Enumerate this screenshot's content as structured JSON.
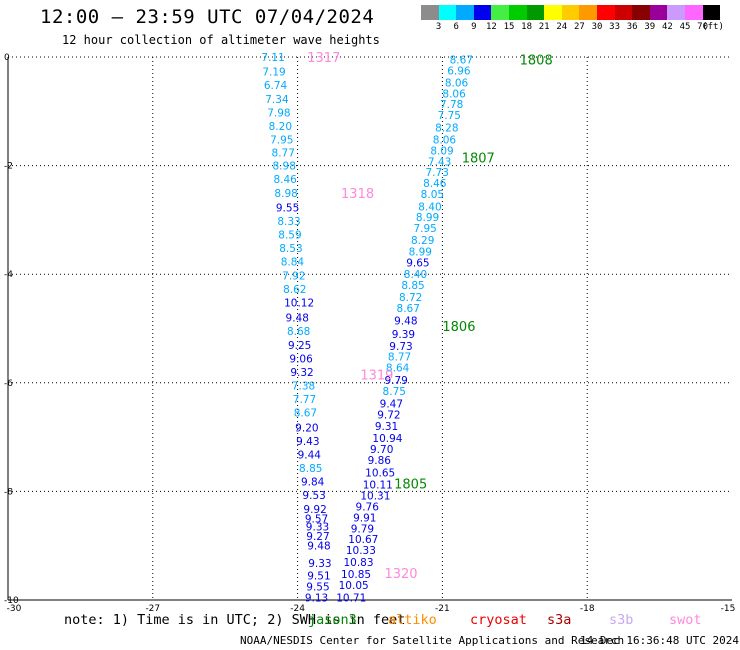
{
  "header": {
    "title": "12:00 — 23:59 UTC 07/04/2024",
    "subtitle": "12 hour collection of altimeter wave heights"
  },
  "footer": {
    "note": "note: 1) Time is in UTC; 2) SWH is in feet",
    "credit": "NOAA/NESDIS Center for Satellite Applications and Research",
    "generated": "14 Dec 16:36:48 UTC 2024"
  },
  "missions": [
    {
      "label": "jason3",
      "color": "#008800",
      "pos": 0
    },
    {
      "label": "altiko",
      "color": "#ff8c00",
      "pos": 1
    },
    {
      "label": "cryosat",
      "color": "#ee0000",
      "pos": 2
    },
    {
      "label": "s3a",
      "color": "#aa0000",
      "pos": 3
    },
    {
      "label": "s3b",
      "color": "#c8a8f0",
      "pos": 4
    },
    {
      "label": "swot",
      "color": "#ff88dd",
      "pos": 5
    }
  ],
  "legend": {
    "colors": [
      "#8c8c8c",
      "#00ffff",
      "#00aaff",
      "#0000ee",
      "#44ee44",
      "#00cc00",
      "#009900",
      "#ffff00",
      "#ffcc00",
      "#ff9900",
      "#ff0000",
      "#cc0000",
      "#880000",
      "#990099",
      "#cc99ff",
      "#ff66ff",
      "#000000"
    ],
    "labels": [
      "3",
      "6",
      "9",
      "12",
      "15",
      "18",
      "21",
      "24",
      "27",
      "30",
      "33",
      "36",
      "39",
      "42",
      "45",
      "70",
      "(ft)"
    ]
  },
  "chart_data": {
    "type": "scatter",
    "xlim": [
      -30,
      -15
    ],
    "ylim": [
      -10,
      0
    ],
    "x_ticks": [
      "-30",
      "-27",
      "-24",
      "-21",
      "-18",
      "-15"
    ],
    "y_ticks": [
      "0",
      "-2",
      "-4",
      "-6",
      "-8",
      "-10"
    ],
    "grid": true,
    "track_labels": [
      {
        "label": "1317",
        "x": -23.8,
        "y": 0.0,
        "color": "#ff88dd"
      },
      {
        "label": "1318",
        "x": -23.1,
        "y": -2.5,
        "color": "#ff88dd"
      },
      {
        "label": "1319",
        "x": -22.7,
        "y": -5.85,
        "color": "#ff88dd"
      },
      {
        "label": "1320",
        "x": -22.2,
        "y": -9.5,
        "color": "#ff88dd"
      },
      {
        "label": "1808",
        "x": -19.4,
        "y": -0.05,
        "color": "#008800"
      },
      {
        "label": "1807",
        "x": -20.6,
        "y": -1.85,
        "color": "#008800"
      },
      {
        "label": "1806",
        "x": -21.0,
        "y": -4.95,
        "color": "#008800"
      },
      {
        "label": "1805",
        "x": -22.0,
        "y": -7.85,
        "color": "#008800"
      }
    ],
    "series": [
      {
        "color_key": "swot_track",
        "points": [
          [
            -24.75,
            0.0,
            "7.11",
            "#00aaff"
          ],
          [
            -24.73,
            -0.27,
            "7.19",
            "#00aaff"
          ],
          [
            -24.7,
            -0.52,
            "6.74",
            "#00aaff"
          ],
          [
            -24.67,
            -0.77,
            "7.34",
            "#00aaff"
          ],
          [
            -24.63,
            -1.02,
            "7.98",
            "#00aaff"
          ],
          [
            -24.6,
            -1.27,
            "8.20",
            "#00aaff"
          ],
          [
            -24.57,
            -1.52,
            "7.95",
            "#00aaff"
          ],
          [
            -24.54,
            -1.76,
            "8.77",
            "#00aaff"
          ],
          [
            -24.52,
            -2.0,
            "8.98",
            "#00aaff"
          ],
          [
            -24.5,
            -2.25,
            "8.46",
            "#00aaff"
          ],
          [
            -24.48,
            -2.5,
            "8.98",
            "#00aaff"
          ],
          [
            -24.45,
            -2.77,
            "9.55",
            "#0000ee"
          ],
          [
            -24.42,
            -3.02,
            "8.33",
            "#00aaff"
          ],
          [
            -24.4,
            -3.27,
            "8.59",
            "#00aaff"
          ],
          [
            -24.38,
            -3.52,
            "8.53",
            "#00aaff"
          ],
          [
            -24.35,
            -3.77,
            "8.84",
            "#00aaff"
          ],
          [
            -24.32,
            -4.02,
            "7.92",
            "#00aaff"
          ],
          [
            -24.3,
            -4.27,
            "8.62",
            "#00aaff"
          ],
          [
            -24.28,
            -4.52,
            "10.12",
            "#0000ee"
          ],
          [
            -24.25,
            -4.8,
            "9.48",
            "#0000ee"
          ],
          [
            -24.22,
            -5.05,
            "8.68",
            "#00aaff"
          ],
          [
            -24.2,
            -5.3,
            "9.25",
            "#0000ee"
          ],
          [
            -24.17,
            -5.55,
            "9.06",
            "#0000ee"
          ],
          [
            -24.15,
            -5.8,
            "9.32",
            "#0000ee"
          ],
          [
            -24.12,
            -6.05,
            "7.38",
            "#00aaff"
          ],
          [
            -24.1,
            -6.3,
            "7.77",
            "#00aaff"
          ],
          [
            -24.08,
            -6.55,
            "8.67",
            "#00aaff"
          ],
          [
            -24.05,
            -6.82,
            "9.20",
            "#0000ee"
          ],
          [
            -24.03,
            -7.07,
            "9.43",
            "#0000ee"
          ],
          [
            -24.0,
            -7.32,
            "9.44",
            "#0000ee"
          ],
          [
            -23.97,
            -7.57,
            "8.85",
            "#00aaff"
          ],
          [
            -23.93,
            -7.82,
            "9.84",
            "#0000ee"
          ],
          [
            -23.9,
            -8.07,
            "9.53",
            "#0000ee"
          ],
          [
            -23.88,
            -8.32,
            "9.92",
            "#0000ee"
          ],
          [
            -23.85,
            -8.5,
            "9.57",
            "#0000ee"
          ],
          [
            -23.83,
            -8.65,
            "9.33",
            "#0000ee"
          ],
          [
            -23.82,
            -8.82,
            "9.27",
            "#0000ee"
          ],
          [
            -23.8,
            -9.0,
            "9.48",
            "#0000ee"
          ],
          [
            -23.78,
            -9.32,
            "9.33",
            "#0000ee"
          ],
          [
            -23.8,
            -9.55,
            "9.51",
            "#0000ee"
          ],
          [
            -23.82,
            -9.75,
            "9.55",
            "#0000ee"
          ],
          [
            -23.85,
            -9.95,
            "9.13",
            "#0000ee"
          ]
        ]
      },
      {
        "color_key": "jason3_track",
        "points": [
          [
            -20.85,
            -0.05,
            "8.67",
            "#00aaff"
          ],
          [
            -20.9,
            -0.25,
            "6.96",
            "#00aaff"
          ],
          [
            -20.95,
            -0.47,
            "8.06",
            "#00aaff"
          ],
          [
            -21.0,
            -0.67,
            "8.06",
            "#00aaff"
          ],
          [
            -21.05,
            -0.87,
            "7.78",
            "#00aaff"
          ],
          [
            -21.1,
            -1.07,
            "7.75",
            "#00aaff"
          ],
          [
            -21.15,
            -1.3,
            "8.28",
            "#00aaff"
          ],
          [
            -21.2,
            -1.52,
            "8.06",
            "#00aaff"
          ],
          [
            -21.25,
            -1.72,
            "8.09",
            "#00aaff"
          ],
          [
            -21.3,
            -1.92,
            "7.43",
            "#00aaff"
          ],
          [
            -21.35,
            -2.12,
            "7.73",
            "#00aaff"
          ],
          [
            -21.4,
            -2.32,
            "8.46",
            "#00aaff"
          ],
          [
            -21.45,
            -2.52,
            "8.05",
            "#00aaff"
          ],
          [
            -21.5,
            -2.75,
            "8.40",
            "#00aaff"
          ],
          [
            -21.55,
            -2.95,
            "8.99",
            "#00aaff"
          ],
          [
            -21.6,
            -3.15,
            "7.95",
            "#00aaff"
          ],
          [
            -21.65,
            -3.37,
            "8.29",
            "#00aaff"
          ],
          [
            -21.7,
            -3.58,
            "8.99",
            "#00aaff"
          ],
          [
            -21.75,
            -3.78,
            "9.65",
            "#0000ee"
          ],
          [
            -21.8,
            -4.0,
            "8.40",
            "#00aaff"
          ],
          [
            -21.85,
            -4.2,
            "8.85",
            "#00aaff"
          ],
          [
            -21.9,
            -4.42,
            "8.72",
            "#00aaff"
          ],
          [
            -21.95,
            -4.62,
            "8.67",
            "#00aaff"
          ],
          [
            -22.0,
            -4.85,
            "9.48",
            "#0000ee"
          ],
          [
            -22.05,
            -5.1,
            "9.39",
            "#0000ee"
          ],
          [
            -22.1,
            -5.32,
            "9.73",
            "#0000ee"
          ],
          [
            -22.13,
            -5.52,
            "8.77",
            "#00aaff"
          ],
          [
            -22.17,
            -5.72,
            "8.64",
            "#00aaff"
          ],
          [
            -22.2,
            -5.95,
            "9.79",
            "#0000ee"
          ],
          [
            -22.24,
            -6.15,
            "8.75",
            "#00aaff"
          ],
          [
            -22.3,
            -6.38,
            "9.47",
            "#0000ee"
          ],
          [
            -22.35,
            -6.58,
            "9.72",
            "#0000ee"
          ],
          [
            -22.4,
            -6.8,
            "9.31",
            "#0000ee"
          ],
          [
            -22.45,
            -7.02,
            "10.94",
            "#0000ee"
          ],
          [
            -22.5,
            -7.22,
            "9.70",
            "#0000ee"
          ],
          [
            -22.55,
            -7.42,
            "9.86",
            "#0000ee"
          ],
          [
            -22.6,
            -7.65,
            "10.65",
            "#0000ee"
          ],
          [
            -22.65,
            -7.87,
            "10.11",
            "#0000ee"
          ],
          [
            -22.7,
            -8.08,
            "10.31",
            "#0000ee"
          ],
          [
            -22.8,
            -8.28,
            "9.76",
            "#0000ee"
          ],
          [
            -22.85,
            -8.48,
            "9.91",
            "#0000ee"
          ],
          [
            -22.9,
            -8.68,
            "9.79",
            "#0000ee"
          ],
          [
            -22.95,
            -8.88,
            "10.67",
            "#0000ee"
          ],
          [
            -23.0,
            -9.08,
            "10.33",
            "#0000ee"
          ],
          [
            -23.05,
            -9.3,
            "10.83",
            "#0000ee"
          ],
          [
            -23.1,
            -9.52,
            "10.85",
            "#0000ee"
          ],
          [
            -23.15,
            -9.72,
            "10.05",
            "#0000ee"
          ],
          [
            -23.2,
            -9.95,
            "10.71",
            "#0000ee"
          ]
        ]
      }
    ]
  }
}
